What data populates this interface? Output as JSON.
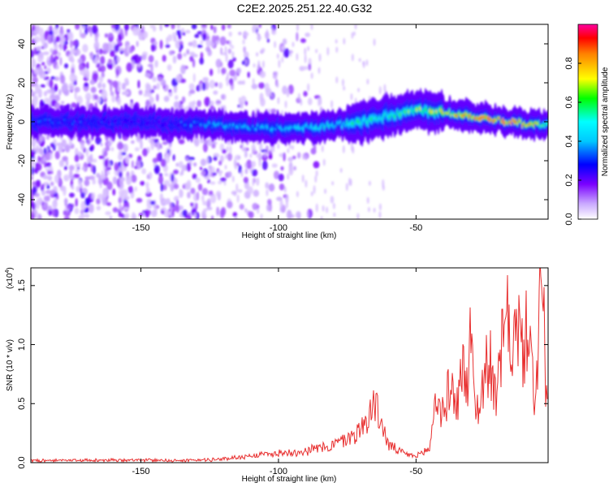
{
  "title": "C2E2.2025.251.22.40.G32",
  "chart_data": [
    {
      "type": "heatmap",
      "xlabel": "Height of straight line (km)",
      "ylabel": "Frequency (Hz)",
      "xlim": [
        -190,
        -2
      ],
      "ylim": [
        -50,
        50
      ],
      "x_ticks": [
        -150,
        -100,
        -50
      ],
      "x_tick_labels": [
        "-150",
        "-100",
        "-50"
      ],
      "y_ticks": [
        -40,
        -20,
        0,
        20,
        40
      ],
      "y_tick_labels": [
        "-40",
        "-20",
        "0",
        "20",
        "40"
      ],
      "ridge": {
        "description_x": [
          -190,
          -150,
          -140,
          -130,
          -120,
          -110,
          -100,
          -90,
          -80,
          -70,
          -60,
          -50,
          -40,
          -30,
          -20,
          -10,
          -2
        ],
        "frequency_hz": [
          0,
          0,
          -1,
          -1,
          -2,
          -3,
          -3,
          -3,
          -2,
          0,
          3,
          6,
          5,
          3,
          1,
          -1,
          -2
        ],
        "peak_amplitude": [
          0.35,
          0.3,
          0.3,
          0.4,
          0.45,
          0.45,
          0.45,
          0.5,
          0.55,
          0.6,
          0.6,
          0.7,
          0.75,
          0.9,
          0.95,
          0.9,
          0.6
        ]
      },
      "noise_region_x": [
        -190,
        -120
      ],
      "colorbar": {
        "label": "Normalized spectral amplitude",
        "range": [
          0,
          1
        ],
        "ticks": [
          0,
          0.2,
          0.4,
          0.6,
          0.8
        ],
        "tick_labels": [
          "0.0",
          "0.2",
          "0.4",
          "0.6",
          "0.8"
        ]
      }
    },
    {
      "type": "line",
      "xlabel": "Height of straight line (km)",
      "ylabel": "SNR (10 * v/v)",
      "scale_label": "(x10",
      "scale_exp": "4",
      "scale_close": ")",
      "xlim": [
        -190,
        -2
      ],
      "ylim": [
        0,
        1.65
      ],
      "x_ticks": [
        -150,
        -100,
        -50
      ],
      "x_tick_labels": [
        "-150",
        "-100",
        "-50"
      ],
      "y_ticks": [
        0,
        0.5,
        1.0,
        1.5
      ],
      "y_tick_labels": [
        "0.0",
        "0.5",
        "1.0",
        "1.5"
      ],
      "series": [
        {
          "name": "SNR",
          "color": "#e83030",
          "x": [
            -190,
            -170,
            -150,
            -130,
            -120,
            -110,
            -100,
            -90,
            -80,
            -75,
            -70,
            -67,
            -65,
            -60,
            -55,
            -50,
            -45,
            -43,
            -40,
            -38,
            -35,
            -33,
            -31,
            -30,
            -29,
            -27,
            -25,
            -23,
            -21,
            -19,
            -17,
            -15,
            -13,
            -11,
            -9,
            -7,
            -6,
            -5,
            -4,
            -3,
            -2
          ],
          "values": [
            0.02,
            0.02,
            0.02,
            0.02,
            0.03,
            0.06,
            0.08,
            0.1,
            0.15,
            0.2,
            0.28,
            0.42,
            0.5,
            0.15,
            0.08,
            0.05,
            0.12,
            0.55,
            0.4,
            0.65,
            0.5,
            0.85,
            0.55,
            1.3,
            0.6,
            0.4,
            0.8,
            0.85,
            0.5,
            0.95,
            1.2,
            1.0,
            1.15,
            0.9,
            1.25,
            0.45,
            0.8,
            1.4,
            1.65,
            0.6,
            0.55
          ]
        }
      ]
    }
  ]
}
